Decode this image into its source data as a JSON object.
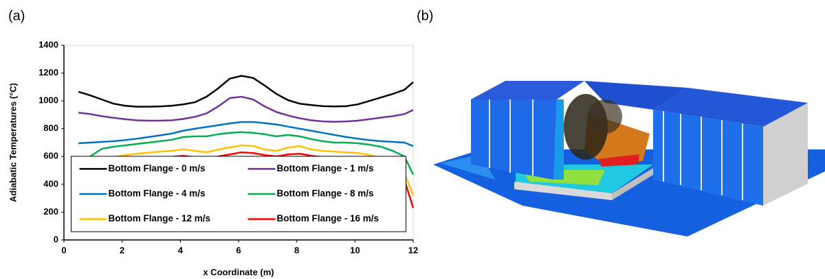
{
  "panel_a_label": "(a)",
  "panel_b_label": "(b)",
  "chart_data": {
    "type": "line",
    "x_label": "x Coordinate (m)",
    "y_label": "Adiabatic Temperatures (°C)",
    "x": [
      0.5,
      0.9,
      1.3,
      1.7,
      2.1,
      2.5,
      2.9,
      3.3,
      3.7,
      4.1,
      4.5,
      4.9,
      5.3,
      5.7,
      6.1,
      6.5,
      6.9,
      7.3,
      7.7,
      8.1,
      8.5,
      8.9,
      9.3,
      9.7,
      10.1,
      10.5,
      10.9,
      11.3,
      11.7,
      12
    ],
    "series": [
      {
        "name": "Bottom Flange - 0 m/s",
        "color": "#000000",
        "values": [
          1065,
          1040,
          1010,
          980,
          965,
          958,
          958,
          960,
          965,
          975,
          990,
          1030,
          1090,
          1160,
          1180,
          1165,
          1110,
          1050,
          1005,
          980,
          970,
          962,
          960,
          962,
          975,
          1000,
          1025,
          1050,
          1080,
          1135
        ]
      },
      {
        "name": "Bottom Flange - 1 m/s",
        "color": "#7030a0",
        "values": [
          915,
          905,
          890,
          878,
          868,
          860,
          858,
          858,
          860,
          870,
          885,
          910,
          960,
          1020,
          1030,
          1010,
          960,
          920,
          895,
          875,
          860,
          852,
          850,
          852,
          858,
          868,
          880,
          890,
          905,
          935
        ]
      },
      {
        "name": "Bottom Flange - 4 m/s",
        "color": "#0070c0",
        "values": [
          695,
          700,
          705,
          710,
          718,
          728,
          740,
          752,
          765,
          785,
          800,
          812,
          825,
          838,
          848,
          848,
          840,
          830,
          815,
          800,
          785,
          770,
          755,
          740,
          728,
          718,
          710,
          705,
          700,
          675
        ]
      },
      {
        "name": "Bottom Flange - 8 m/s",
        "color": "#00b050",
        "values": [
          545,
          600,
          655,
          670,
          680,
          690,
          700,
          710,
          720,
          740,
          745,
          745,
          760,
          770,
          775,
          770,
          760,
          745,
          755,
          745,
          725,
          710,
          700,
          700,
          695,
          685,
          670,
          640,
          600,
          470
        ]
      },
      {
        "name": "Bottom Flange - 12 m/s",
        "color": "#ffc000",
        "values": [
          405,
          490,
          570,
          595,
          610,
          620,
          628,
          635,
          640,
          652,
          640,
          630,
          650,
          665,
          680,
          675,
          650,
          640,
          665,
          675,
          650,
          640,
          635,
          630,
          625,
          610,
          590,
          540,
          480,
          320
        ]
      },
      {
        "name": "Bottom Flange - 16 m/s",
        "color": "#ff0000",
        "values": [
          300,
          430,
          510,
          540,
          555,
          570,
          580,
          590,
          598,
          605,
          595,
          585,
          600,
          615,
          630,
          625,
          610,
          600,
          615,
          620,
          605,
          595,
          590,
          580,
          570,
          555,
          530,
          500,
          430,
          230
        ]
      }
    ],
    "xlim": [
      0,
      12
    ],
    "xticks": [
      0,
      2,
      4,
      6,
      8,
      10,
      12
    ],
    "ylim": [
      0,
      1400
    ],
    "yticks": [
      0,
      200,
      400,
      600,
      800,
      1000,
      1200,
      1400
    ],
    "grid": false,
    "legend_position": "lower-center",
    "legend_columns": 2
  }
}
